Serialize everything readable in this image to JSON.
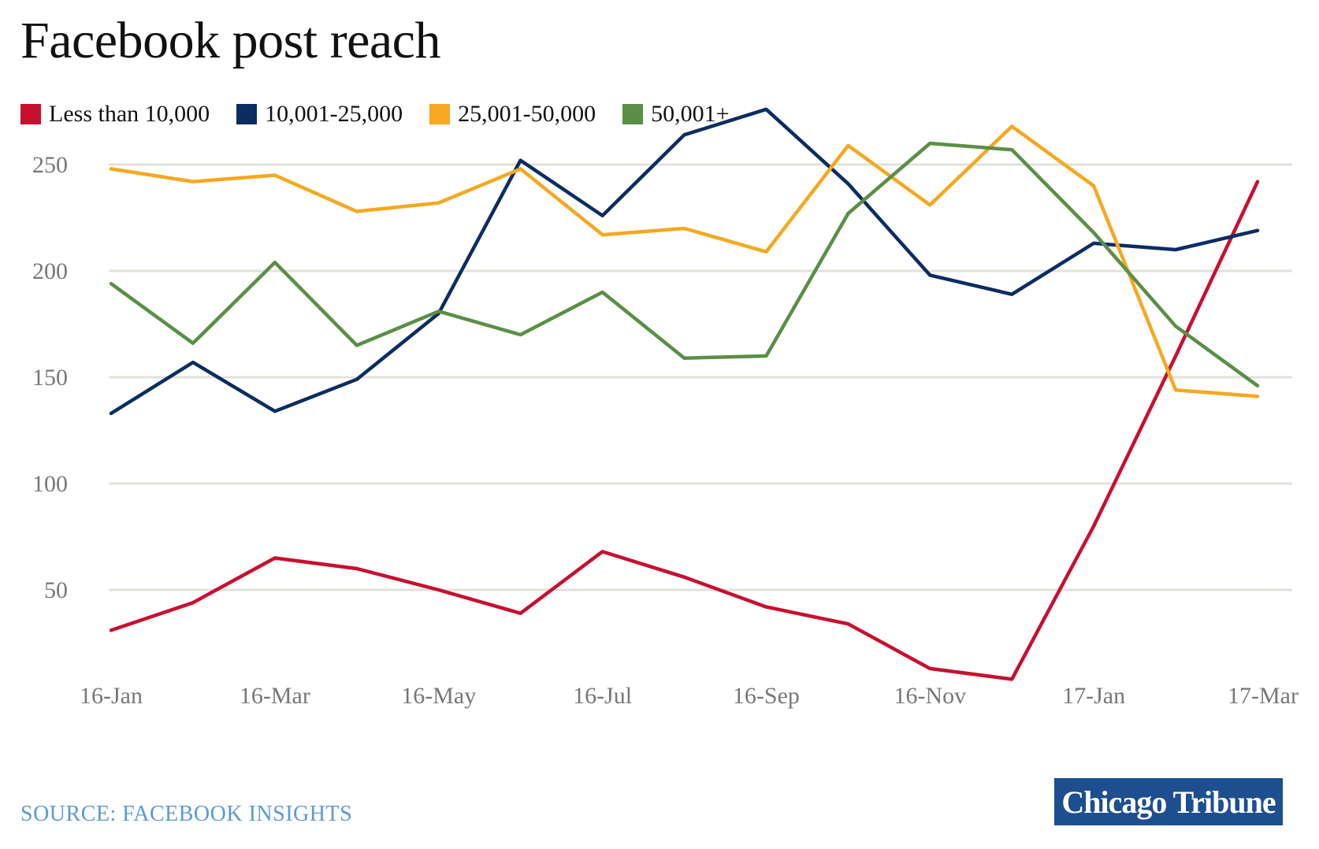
{
  "title": "Facebook post reach",
  "source": "SOURCE: FACEBOOK INSIGHTS",
  "brand": "Chicago Tribune",
  "chart_data": {
    "type": "line",
    "title": "Facebook post reach",
    "xlabel": "",
    "ylabel": "",
    "x": [
      "16-Jan",
      "16-Feb",
      "16-Mar",
      "16-Apr",
      "16-May",
      "16-Jun",
      "16-Jul",
      "16-Aug",
      "16-Sep",
      "16-Oct",
      "16-Nov",
      "16-Dec",
      "17-Jan",
      "17-Feb",
      "17-Mar"
    ],
    "x_tick_labels": [
      "16-Jan",
      "16-Mar",
      "16-May",
      "16-Jul",
      "16-Sep",
      "16-Nov",
      "17-Jan",
      "17-Mar"
    ],
    "y_ticks": [
      50,
      100,
      150,
      200,
      250
    ],
    "ylim": [
      0,
      280
    ],
    "grid": true,
    "legend_position": "top-left",
    "series": [
      {
        "name": "Less than 10,000",
        "color": "#c8102e",
        "values": [
          31,
          44,
          65,
          60,
          50,
          39,
          68,
          56,
          42,
          34,
          13,
          8,
          80,
          160,
          242
        ]
      },
      {
        "name": "10,001-25,000",
        "color": "#0c2d62",
        "values": [
          133,
          157,
          134,
          149,
          180,
          252,
          226,
          264,
          276,
          241,
          198,
          189,
          213,
          210,
          219
        ]
      },
      {
        "name": "25,001-50,000",
        "color": "#f5a820",
        "values": [
          248,
          242,
          245,
          228,
          232,
          248,
          217,
          220,
          209,
          259,
          231,
          268,
          240,
          144,
          141
        ]
      },
      {
        "name": "50,001+",
        "color": "#5a8f45",
        "values": [
          194,
          166,
          204,
          165,
          181,
          170,
          190,
          159,
          160,
          227,
          260,
          257,
          218,
          174,
          146
        ]
      }
    ]
  }
}
